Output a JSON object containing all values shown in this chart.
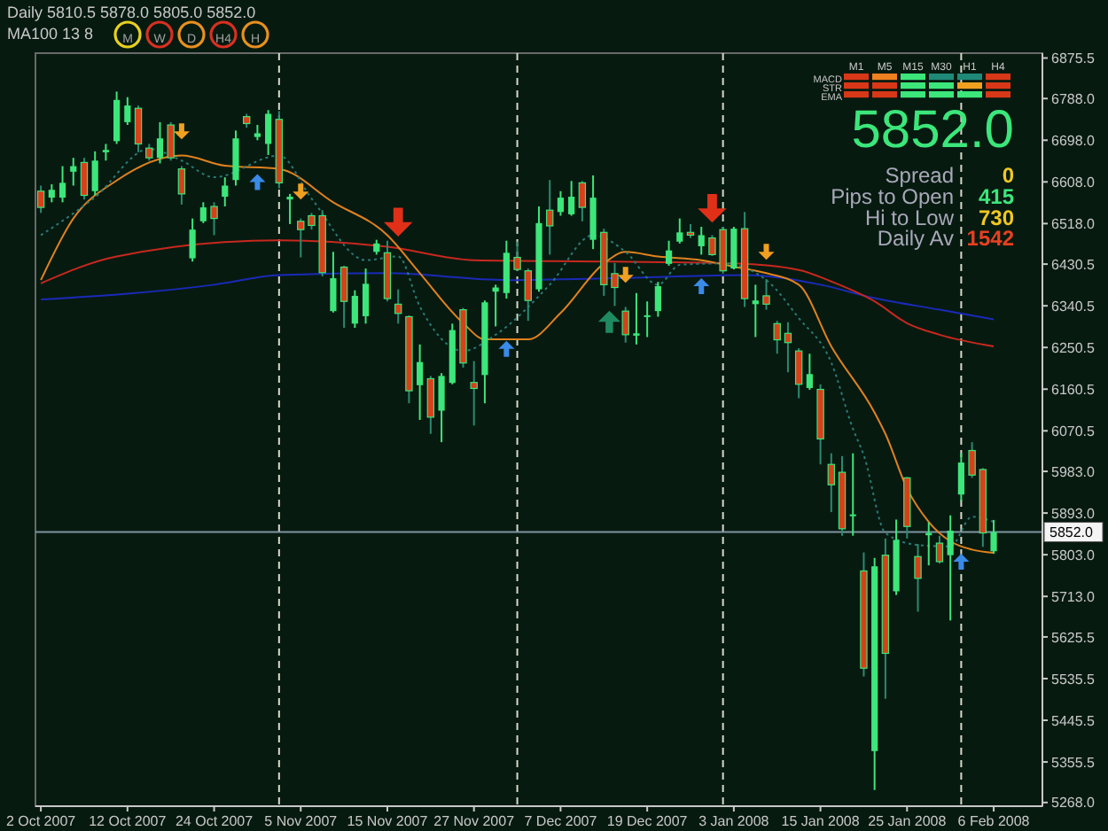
{
  "chart_data": {
    "type": "candlestick",
    "title": "Daily  5810.5 5878.0 5805.0 5852.0",
    "subtitle": "MA100 13 8",
    "categories": [
      "2 Oct 2007",
      null,
      null,
      null,
      null,
      null,
      null,
      null,
      "12 Oct 2007",
      null,
      null,
      null,
      null,
      null,
      null,
      null,
      "24 Oct 2007",
      null,
      null,
      null,
      null,
      null,
      null,
      null,
      "5 Nov 2007",
      null,
      null,
      null,
      null,
      null,
      null,
      null,
      "15 Nov 2007",
      null,
      null,
      null,
      null,
      null,
      null,
      null,
      "27 Nov 2007",
      null,
      null,
      null,
      null,
      null,
      null,
      null,
      "7 Dec 2007",
      null,
      null,
      null,
      null,
      null,
      null,
      null,
      "19 Dec 2007",
      null,
      null,
      null,
      null,
      null,
      null,
      null,
      "3 Jan 2008",
      null,
      null,
      null,
      null,
      null,
      null,
      null,
      "15 Jan 2008",
      null,
      null,
      null,
      null,
      null,
      null,
      null,
      "25 Jan 2008",
      null,
      null,
      null,
      null,
      null,
      null,
      null,
      "6 Feb 2008"
    ],
    "ohlc": [
      [
        6588,
        6600,
        6541,
        6553
      ],
      [
        6574,
        6603,
        6564,
        6591
      ],
      [
        6574,
        6642,
        6564,
        6606
      ],
      [
        6630,
        6660,
        6600,
        6642
      ],
      [
        6650,
        6660,
        6570,
        6579
      ],
      [
        6588,
        6674,
        6579,
        6654
      ],
      [
        6672,
        6690,
        6654,
        6677
      ],
      [
        6696,
        6803,
        6690,
        6785
      ],
      [
        6737,
        6791,
        6731,
        6773
      ],
      [
        6767,
        6773,
        6672,
        6690
      ],
      [
        6681,
        6690,
        6654,
        6660
      ],
      [
        6660,
        6737,
        6648,
        6702
      ],
      [
        6731,
        6737,
        6654,
        6660
      ],
      [
        6636,
        6642,
        6559,
        6582
      ],
      [
        6443,
        6529,
        6436,
        6505
      ],
      [
        6523,
        6564,
        6519,
        6553
      ],
      [
        6555,
        6564,
        6493,
        6529
      ],
      [
        6576,
        6618,
        6555,
        6600
      ],
      [
        6612,
        6719,
        6600,
        6702
      ],
      [
        6749,
        6755,
        6725,
        6734
      ],
      [
        6705,
        6731,
        6698,
        6713
      ],
      [
        6690,
        6763,
        6666,
        6755
      ],
      [
        6743,
        6761,
        6594,
        6606
      ],
      [
        6570,
        6582,
        6517,
        6576
      ],
      [
        6523,
        6529,
        6445,
        6505
      ],
      [
        6535,
        6541,
        6505,
        6514
      ],
      [
        6535,
        6547,
        6404,
        6412
      ],
      [
        6329,
        6457,
        6326,
        6400
      ],
      [
        6424,
        6427,
        6293,
        6350
      ],
      [
        6302,
        6374,
        6293,
        6362
      ],
      [
        6318,
        6421,
        6302,
        6388
      ],
      [
        6457,
        6483,
        6451,
        6475
      ],
      [
        6455,
        6481,
        6350,
        6356
      ],
      [
        6344,
        6376,
        6302,
        6324
      ],
      [
        6317,
        6320,
        6130,
        6157
      ],
      [
        6169,
        6257,
        6094,
        6219
      ],
      [
        6183,
        6189,
        6064,
        6100
      ],
      [
        6114,
        6195,
        6046,
        6189
      ],
      [
        6174,
        6302,
        6171,
        6288
      ],
      [
        6332,
        6336,
        6207,
        6217
      ],
      [
        6175,
        6221,
        6082,
        6162
      ],
      [
        6191,
        6352,
        6130,
        6348
      ],
      [
        6371,
        6386,
        6296,
        6380
      ],
      [
        6368,
        6481,
        6356,
        6455
      ],
      [
        6445,
        6479,
        6416,
        6419
      ],
      [
        6416,
        6421,
        6308,
        6352
      ],
      [
        6376,
        6555,
        6371,
        6519
      ],
      [
        6547,
        6612,
        6451,
        6513
      ],
      [
        6543,
        6588,
        6535,
        6574
      ],
      [
        6538,
        6610,
        6535,
        6576
      ],
      [
        6606,
        6610,
        6523,
        6553
      ],
      [
        6483,
        6622,
        6463,
        6574
      ],
      [
        6499,
        6507,
        6362,
        6386
      ],
      [
        6410,
        6433,
        6340,
        6380
      ],
      [
        6329,
        6338,
        6261,
        6278
      ],
      [
        6276,
        6368,
        6257,
        6281
      ],
      [
        6317,
        6350,
        6273,
        6320
      ],
      [
        6329,
        6392,
        6317,
        6383
      ],
      [
        6431,
        6481,
        6427,
        6460
      ],
      [
        6479,
        6529,
        6475,
        6499
      ],
      [
        6499,
        6517,
        6487,
        6493
      ],
      [
        6469,
        6511,
        6451,
        6493
      ],
      [
        6487,
        6493,
        6448,
        6451
      ],
      [
        6505,
        6511,
        6410,
        6416
      ],
      [
        6421,
        6511,
        6419,
        6507
      ],
      [
        6507,
        6543,
        6338,
        6356
      ],
      [
        6344,
        6386,
        6273,
        6352
      ],
      [
        6362,
        6398,
        6332,
        6344
      ],
      [
        6302,
        6308,
        6237,
        6267
      ],
      [
        6281,
        6305,
        6197,
        6261
      ],
      [
        6243,
        6249,
        6141,
        6171
      ],
      [
        6163,
        6237,
        6159,
        6193
      ],
      [
        6160,
        6171,
        5998,
        6053
      ],
      [
        5998,
        6022,
        5895,
        5954
      ],
      [
        5981,
        6016,
        5844,
        5859
      ],
      [
        5888,
        6022,
        5844,
        5890
      ],
      [
        5768,
        5808,
        5540,
        5558
      ],
      [
        5379,
        5796,
        5295,
        5778
      ],
      [
        5802,
        5838,
        5492,
        5590
      ],
      [
        5724,
        5879,
        5716,
        5835
      ],
      [
        5969,
        5971,
        5838,
        5864
      ],
      [
        5799,
        5826,
        5680,
        5752
      ],
      [
        5845,
        5873,
        5780,
        5850
      ],
      [
        5828,
        5844,
        5784,
        5788
      ],
      [
        5802,
        5888,
        5661,
        5855
      ],
      [
        5933,
        6022,
        5919,
        6002
      ],
      [
        6028,
        6046,
        5969,
        5975
      ],
      [
        5987,
        5990,
        5820,
        5850
      ],
      [
        5810.5,
        5878,
        5805,
        5852
      ]
    ],
    "series": [
      {
        "type": "line",
        "color": "#1a2ab8",
        "values": [
          6354,
          null,
          null,
          null,
          null,
          null,
          null,
          null,
          null,
          null,
          null,
          null,
          null,
          null,
          null,
          null,
          6386,
          null,
          null,
          null,
          null,
          null,
          6407,
          null,
          null,
          null,
          null,
          null,
          null,
          null,
          null,
          null,
          6411,
          null,
          null,
          null,
          null,
          null,
          null,
          null,
          null,
          null,
          null,
          6396,
          null,
          null,
          null,
          null,
          null,
          null,
          null,
          null,
          null,
          6400,
          null,
          null,
          null,
          null,
          null,
          null,
          null,
          null,
          null,
          null,
          null,
          6407,
          null,
          null,
          null,
          null,
          null,
          null,
          6386,
          null,
          null,
          null,
          null,
          6357,
          null,
          null,
          null,
          null,
          null,
          6332,
          null,
          null,
          null,
          null,
          6311
        ]
      },
      {
        "type": "line",
        "color": "#c8281e",
        "values": [
          6389,
          null,
          null,
          null,
          null,
          null,
          null,
          6447,
          null,
          null,
          null,
          null,
          null,
          null,
          null,
          null,
          null,
          null,
          null,
          null,
          null,
          null,
          6482,
          null,
          null,
          null,
          null,
          null,
          null,
          null,
          null,
          null,
          6468,
          null,
          null,
          null,
          null,
          null,
          null,
          null,
          6439,
          null,
          null,
          null,
          null,
          null,
          null,
          null,
          null,
          null,
          null,
          null,
          null,
          6436,
          null,
          null,
          null,
          null,
          null,
          null,
          null,
          null,
          null,
          null,
          6432,
          null,
          null,
          null,
          null,
          null,
          6418,
          null,
          null,
          6393,
          null,
          null,
          null,
          6350,
          null,
          null,
          6303,
          null,
          null,
          6278,
          null,
          null,
          null,
          null,
          6253
        ]
      },
      {
        "type": "line",
        "color": "#e0821e",
        "values": [
          6396,
          null,
          null,
          6529,
          null,
          null,
          null,
          6611,
          null,
          null,
          null,
          null,
          null,
          6665,
          null,
          null,
          null,
          6643,
          null,
          null,
          null,
          null,
          6636,
          null,
          null,
          null,
          null,
          6564,
          null,
          null,
          null,
          null,
          6493,
          null,
          null,
          6411,
          null,
          null,
          null,
          6303,
          null,
          6268,
          null,
          null,
          null,
          6268,
          null,
          null,
          6325,
          null,
          null,
          null,
          6432,
          null,
          6457,
          null,
          null,
          6447,
          null,
          null,
          null,
          6439,
          null,
          null,
          6425,
          null,
          null,
          6411,
          null,
          null,
          6386,
          null,
          null,
          6253,
          null,
          null,
          null,
          6110,
          6064,
          null,
          5946,
          null,
          5874,
          null,
          5832,
          null,
          5814,
          null,
          5807
        ]
      },
      {
        "type": "line",
        "color": "#2a7a78",
        "line_style": "dotted",
        "values": [
          6493,
          null,
          null,
          null,
          null,
          6575,
          null,
          null,
          null,
          null,
          6679,
          null,
          null,
          6654,
          null,
          null,
          6618,
          null,
          null,
          null,
          null,
          null,
          6665,
          null,
          null,
          6572,
          null,
          null,
          null,
          null,
          6439,
          null,
          null,
          6447,
          null,
          6339,
          null,
          null,
          null,
          6243,
          null,
          null,
          6278,
          null,
          null,
          null,
          null,
          6386,
          null,
          null,
          null,
          6493,
          null,
          null,
          6457,
          null,
          null,
          6386,
          null,
          6429,
          null,
          null,
          null,
          6432,
          null,
          null,
          null,
          6396,
          null,
          null,
          6314,
          null,
          null,
          6218,
          null,
          6075,
          6018,
          null,
          5850,
          null,
          null,
          5824,
          null,
          null,
          5821,
          null,
          5885,
          null,
          5874
        ]
      }
    ],
    "ylim": [
      5260,
      6886
    ],
    "yticks": [
      6875.5,
      {
        "value": 6788,
        "label": "6788.0"
      },
      {
        "value": 6698,
        "label": "6698.0"
      },
      {
        "value": 6608,
        "label": "6608.0"
      },
      {
        "value": 6518,
        "label": "6518.0"
      },
      6430.5,
      6340.5,
      6250.5,
      6160.5,
      6070.5,
      {
        "value": 5983,
        "label": "5983.0"
      },
      {
        "value": 5893,
        "label": "5893.0"
      },
      {
        "value": 5803,
        "label": "5803.0"
      },
      {
        "value": 5713,
        "label": "5713.0"
      },
      5625.5,
      5535.5,
      5445.5,
      5355.5,
      {
        "value": 5268,
        "label": "5268.0"
      }
    ],
    "grid": "x",
    "ref_lines": [
      {
        "axis": "y",
        "value": 5852,
        "label": "5852.0",
        "color": "#7f93a0",
        "line_style": "solid"
      }
    ],
    "annotations": [
      "M",
      "W",
      "D",
      "H4",
      "H",
      "M1",
      "M5",
      "M15",
      "M30",
      "H1",
      "H4",
      "MACD",
      "STR",
      "EMA",
      "5852.0",
      "Spread",
      "0",
      "Pips to Open",
      "415",
      "Hi to Low",
      "730",
      "Daily Av",
      "1542"
    ]
  }
}
